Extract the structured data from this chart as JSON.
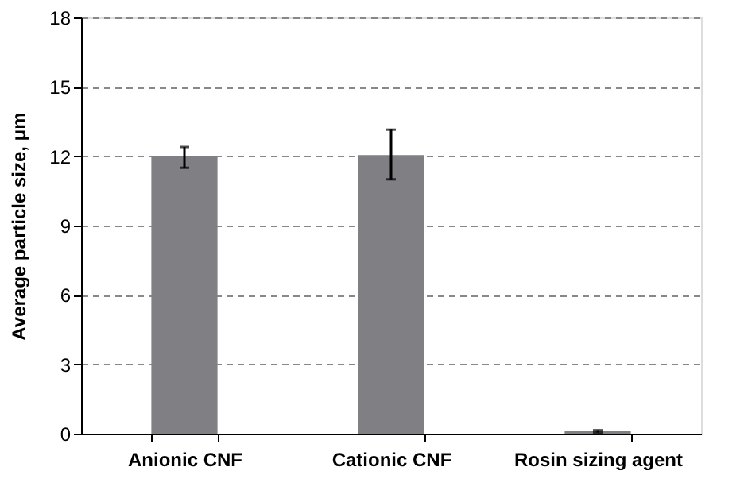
{
  "chart_data": {
    "type": "bar",
    "ylabel": "Average particle size, μm",
    "categories": [
      "Anionic CNF",
      "Cationic CNF",
      "Rosin sizing agent"
    ],
    "values": [
      12.0,
      12.05,
      0.1
    ],
    "errors": [
      [
        11.5,
        12.4
      ],
      [
        11.0,
        13.15
      ],
      [
        0.05,
        0.15
      ]
    ],
    "color": "#7f7f84",
    "ylim": [
      0,
      18
    ],
    "yticks": [
      0,
      3,
      6,
      9,
      12,
      15,
      18
    ],
    "grid": "y"
  }
}
